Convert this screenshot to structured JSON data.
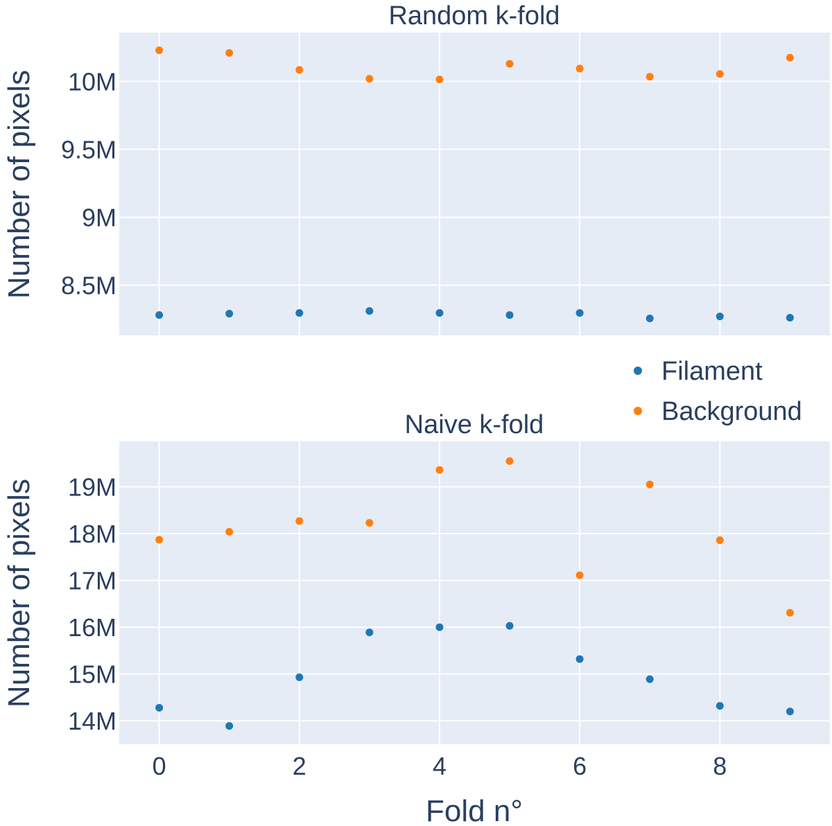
{
  "chart_data": [
    {
      "type": "scatter",
      "title": "Random k-fold",
      "xlabel": "",
      "ylabel": "Number of pixels",
      "x": [
        0,
        1,
        2,
        3,
        4,
        5,
        6,
        7,
        8,
        9
      ],
      "xlim": [
        -0.57,
        9.57
      ],
      "ylim": [
        8.13,
        10.36
      ],
      "yticks": [
        8.5,
        9,
        9.5,
        10
      ],
      "ytick_labels": [
        "8.5M",
        "9M",
        "9.5M",
        "10M"
      ],
      "grid": true,
      "series": [
        {
          "name": "Filament",
          "color": "#1f77b4",
          "values": [
            8.28,
            8.29,
            8.295,
            8.31,
            8.295,
            8.28,
            8.295,
            8.255,
            8.27,
            8.26
          ]
        },
        {
          "name": "Background",
          "color": "#ff7f0e",
          "values": [
            10.23,
            10.21,
            10.085,
            10.02,
            10.015,
            10.13,
            10.095,
            10.035,
            10.055,
            10.175
          ]
        }
      ]
    },
    {
      "type": "scatter",
      "title": "Naive k-fold",
      "xlabel": "Fold n°",
      "ylabel": "Number of pixels",
      "x": [
        0,
        1,
        2,
        3,
        4,
        5,
        6,
        7,
        8,
        9
      ],
      "xlim": [
        -0.57,
        9.57
      ],
      "ylim": [
        13.5,
        19.97
      ],
      "yticks": [
        14,
        15,
        16,
        17,
        18,
        19
      ],
      "ytick_labels": [
        "14M",
        "15M",
        "16M",
        "17M",
        "18M",
        "19M"
      ],
      "xticks": [
        0,
        2,
        4,
        6,
        8
      ],
      "xtick_labels": [
        "0",
        "2",
        "4",
        "6",
        "8"
      ],
      "grid": true,
      "series": [
        {
          "name": "Filament",
          "color": "#1f77b4",
          "values": [
            14.28,
            13.89,
            14.93,
            15.89,
            16.0,
            16.03,
            15.32,
            14.89,
            14.32,
            14.2
          ]
        },
        {
          "name": "Background",
          "color": "#ff7f0e",
          "values": [
            17.87,
            18.04,
            18.27,
            18.23,
            19.36,
            19.55,
            17.11,
            19.05,
            17.86,
            16.31
          ]
        }
      ]
    }
  ],
  "legend": {
    "placement": "right, between subplots",
    "items": [
      {
        "label": "Filament",
        "color": "#1f77b4"
      },
      {
        "label": "Background",
        "color": "#ff7f0e"
      }
    ]
  }
}
